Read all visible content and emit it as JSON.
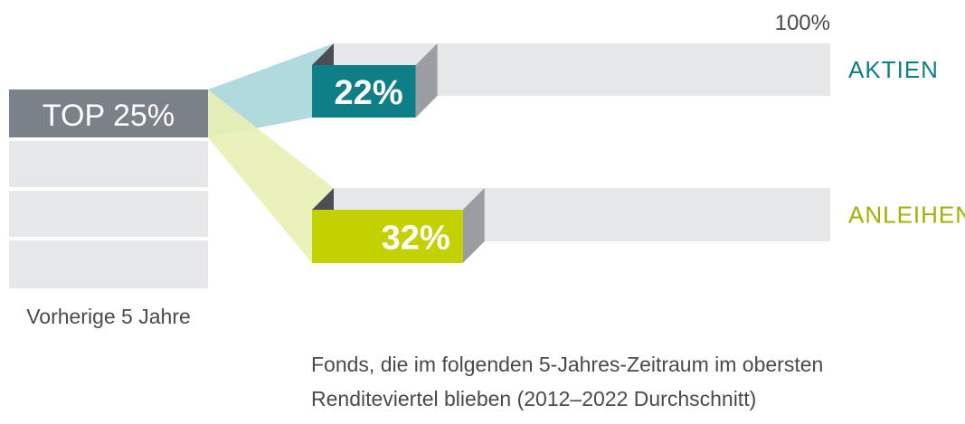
{
  "chart_data": {
    "type": "bar",
    "full_label": "100%",
    "left_block": {
      "label": "TOP 25%",
      "caption": "Vorherige 5 Jahre"
    },
    "series": [
      {
        "name": "AKTIEN",
        "value": 22,
        "display": "22%",
        "color": "#0e7f86",
        "flow_color": "#a9d6dc",
        "label_color": "#0e7f86"
      },
      {
        "name": "ANLEIHEN",
        "value": 32,
        "display": "32%",
        "color": "#c4d100",
        "flow_color": "#e8efb3",
        "label_color": "#a3b100"
      }
    ],
    "footnote": [
      "Fonds, die im folgenden 5-Jahres-Zeitraum im obersten",
      "Renditeviertel blieben (2012–2022 Durchschnitt)"
    ],
    "ylim": [
      0,
      100
    ]
  },
  "colors": {
    "top_block": "#7b8189",
    "empty_block": "#e6e7e8",
    "track": "#e6e7e8",
    "depth": "#9a9ea3",
    "depth_dark": "#4b4f55"
  }
}
